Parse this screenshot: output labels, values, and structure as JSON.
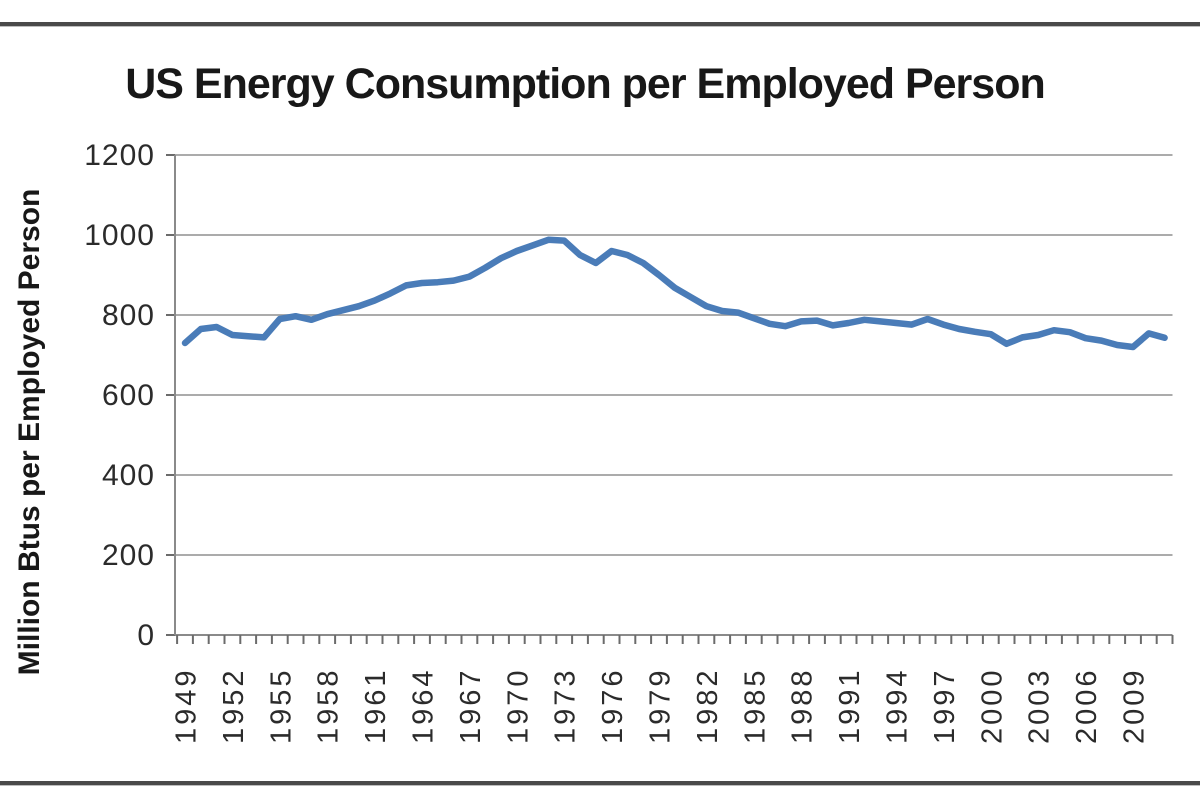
{
  "page": {
    "title": "US Energy Consumption per Employed Person"
  },
  "frame": {
    "rule_color": "#4a4a4a"
  },
  "chart_data": {
    "type": "line",
    "title": "US Energy Consumption per Employed Person",
    "xlabel": "",
    "ylabel": "Million Btus per Employed Person",
    "ylim": [
      0,
      1200
    ],
    "ytick_interval": 200,
    "ytick_labels": [
      "0",
      "200",
      "400",
      "600",
      "800",
      "1000",
      "1200"
    ],
    "xtick_labels": [
      "1949",
      "1952",
      "1955",
      "1958",
      "1961",
      "1964",
      "1967",
      "1970",
      "1973",
      "1976",
      "1979",
      "1982",
      "1985",
      "1988",
      "1991",
      "1994",
      "1997",
      "2000",
      "2003",
      "2006",
      "2009"
    ],
    "xtick_label_step_years": 3,
    "grid": "horizontal",
    "legend_position": "none",
    "line_color": "#4A7CB8",
    "grid_color": "#9f9f9f",
    "axis_color": "#8a8a8a",
    "tick_color": "#6b6b6b",
    "series": [
      {
        "name": "US Energy Consumption per Employed Person",
        "x": [
          1949,
          1950,
          1951,
          1952,
          1953,
          1954,
          1955,
          1956,
          1957,
          1958,
          1959,
          1960,
          1961,
          1962,
          1963,
          1964,
          1965,
          1966,
          1967,
          1968,
          1969,
          1970,
          1971,
          1972,
          1973,
          1974,
          1975,
          1976,
          1977,
          1978,
          1979,
          1980,
          1981,
          1982,
          1983,
          1984,
          1985,
          1986,
          1987,
          1988,
          1989,
          1990,
          1991,
          1992,
          1993,
          1994,
          1995,
          1996,
          1997,
          1998,
          1999,
          2000,
          2001,
          2002,
          2003,
          2004,
          2005,
          2006,
          2007,
          2008,
          2009,
          2010,
          2011
        ],
        "values": [
          730,
          765,
          770,
          750,
          747,
          744,
          790,
          797,
          788,
          802,
          812,
          822,
          836,
          854,
          874,
          880,
          882,
          886,
          896,
          918,
          942,
          960,
          974,
          988,
          986,
          950,
          930,
          960,
          950,
          930,
          900,
          868,
          845,
          822,
          810,
          806,
          792,
          778,
          772,
          784,
          786,
          774,
          780,
          788,
          784,
          780,
          776,
          790,
          776,
          765,
          758,
          752,
          728,
          744,
          750,
          762,
          757,
          742,
          736,
          725,
          720,
          754,
          743
        ]
      }
    ]
  }
}
